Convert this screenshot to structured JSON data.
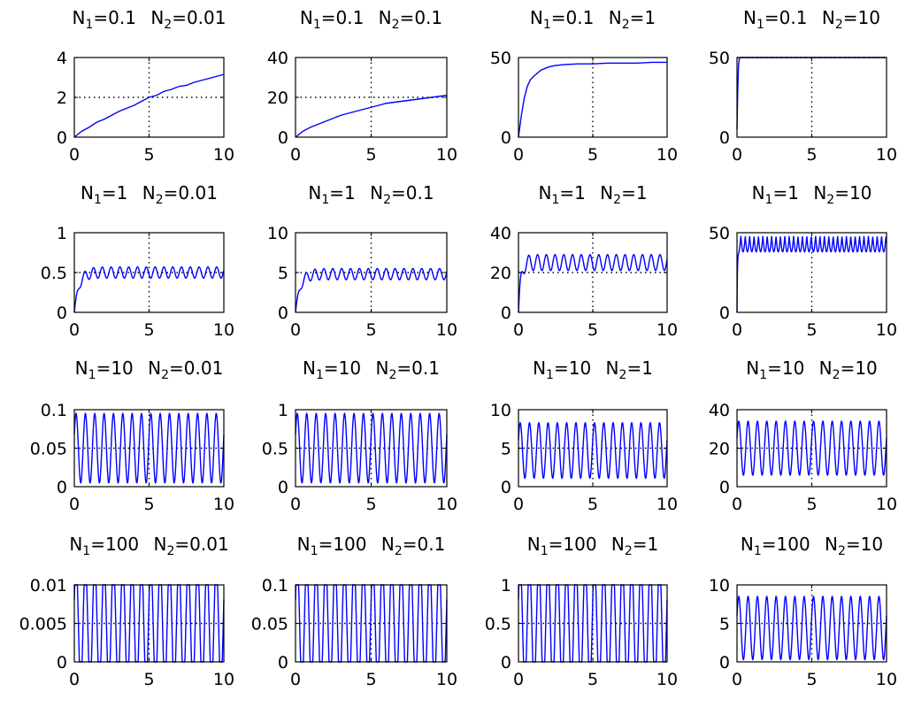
{
  "figure": {
    "background": "#ffffff",
    "line_color": "#0000ff",
    "grid_style": "dotted"
  },
  "chart_data": [
    {
      "type": "line",
      "title": "N1=0.1 N2=0.01",
      "title_parts": {
        "n1": "0.1",
        "n2": "0.01"
      },
      "x_ticks": [
        "0",
        "5",
        "10"
      ],
      "y_ticks": [
        "0",
        "2",
        "4"
      ],
      "xlim": [
        0,
        10
      ],
      "ylim": [
        0,
        4
      ],
      "grid": {
        "x": [
          5
        ],
        "y": [
          2
        ]
      },
      "color": "#0000ff",
      "x": [
        0,
        0.5,
        1,
        1.5,
        2,
        2.5,
        3,
        3.5,
        4,
        4.5,
        5,
        5.5,
        6,
        6.5,
        7,
        7.5,
        8,
        8.5,
        9,
        9.5,
        10
      ],
      "y": [
        0,
        0.3,
        0.5,
        0.75,
        0.9,
        1.1,
        1.3,
        1.45,
        1.6,
        1.8,
        2.0,
        2.1,
        2.3,
        2.4,
        2.55,
        2.6,
        2.75,
        2.85,
        2.95,
        3.05,
        3.15
      ]
    },
    {
      "type": "line",
      "title": "N1=0.1 N2=0.1",
      "title_parts": {
        "n1": "0.1",
        "n2": "0.1"
      },
      "x_ticks": [
        "0",
        "5",
        "10"
      ],
      "y_ticks": [
        "0",
        "20",
        "40"
      ],
      "xlim": [
        0,
        10
      ],
      "ylim": [
        0,
        40
      ],
      "grid": {
        "x": [
          5
        ],
        "y": [
          20
        ]
      },
      "color": "#0000ff",
      "x": [
        0,
        0.5,
        1,
        1.5,
        2,
        2.5,
        3,
        3.5,
        4,
        4.5,
        5,
        5.5,
        6,
        6.5,
        7,
        7.5,
        8,
        8.5,
        9,
        9.5,
        10
      ],
      "y": [
        0,
        3,
        5,
        6.5,
        8,
        9.5,
        11,
        12,
        13,
        14,
        15,
        16,
        17,
        17.5,
        18,
        18.5,
        19,
        19.5,
        20,
        20.5,
        21
      ]
    },
    {
      "type": "line",
      "title": "N1=0.1 N2=1",
      "title_parts": {
        "n1": "0.1",
        "n2": "1"
      },
      "x_ticks": [
        "0",
        "5",
        "10"
      ],
      "y_ticks": [
        "0",
        "50"
      ],
      "xlim": [
        0,
        10
      ],
      "ylim": [
        0,
        50
      ],
      "grid": {
        "x": [
          5
        ],
        "y": []
      },
      "color": "#0000ff",
      "x": [
        0,
        0.2,
        0.4,
        0.6,
        0.8,
        1,
        1.5,
        2,
        2.5,
        3,
        4,
        5,
        6,
        7,
        8,
        9,
        10
      ],
      "y": [
        0,
        14,
        25,
        32,
        36,
        38,
        42,
        44,
        45,
        45.5,
        46,
        46,
        46.5,
        46.5,
        46.5,
        47,
        47
      ]
    },
    {
      "type": "line",
      "title": "N1=0.1 N2=10",
      "title_parts": {
        "n1": "0.1",
        "n2": "10"
      },
      "x_ticks": [
        "0",
        "5",
        "10"
      ],
      "y_ticks": [
        "0",
        "50"
      ],
      "xlim": [
        0,
        10
      ],
      "ylim": [
        0,
        50
      ],
      "grid": {
        "x": [
          5
        ],
        "y": [
          50
        ]
      },
      "color": "#0000ff",
      "x": [
        0,
        0.05,
        0.1,
        0.15,
        0.2,
        0.5,
        1,
        10
      ],
      "y": [
        5,
        30,
        45,
        49,
        50,
        50,
        50,
        50
      ]
    },
    {
      "type": "line",
      "title": "N1=1 N2=0.01",
      "title_parts": {
        "n1": "1",
        "n2": "0.01"
      },
      "x_ticks": [
        "0",
        "5",
        "10"
      ],
      "y_ticks": [
        "0",
        "0.5",
        "1"
      ],
      "xlim": [
        0,
        10
      ],
      "ylim": [
        0,
        1
      ],
      "grid": {
        "x": [
          5
        ],
        "y": [
          0.5
        ]
      },
      "color": "#0000ff",
      "model": {
        "kind": "osc",
        "mean": 0.5,
        "amp": 0.07,
        "freq": 1.7,
        "tau": 0.3,
        "zero_start": true
      }
    },
    {
      "type": "line",
      "title": "N1=1 N2=0.1",
      "title_parts": {
        "n1": "1",
        "n2": "0.1"
      },
      "x_ticks": [
        "0",
        "5",
        "10"
      ],
      "y_ticks": [
        "0",
        "5",
        "10"
      ],
      "xlim": [
        0,
        10
      ],
      "ylim": [
        0,
        10
      ],
      "grid": {
        "x": [
          5
        ],
        "y": [
          5
        ]
      },
      "color": "#0000ff",
      "model": {
        "kind": "osc",
        "mean": 4.8,
        "amp": 0.7,
        "freq": 1.7,
        "tau": 0.3,
        "zero_start": true
      }
    },
    {
      "type": "line",
      "title": "N1=1 N2=1",
      "title_parts": {
        "n1": "1",
        "n2": "1"
      },
      "x_ticks": [
        "0",
        "5",
        "10"
      ],
      "y_ticks": [
        "0",
        "20",
        "40"
      ],
      "xlim": [
        0,
        10
      ],
      "ylim": [
        0,
        40
      ],
      "grid": {
        "x": [
          5
        ],
        "y": [
          20
        ]
      },
      "color": "#0000ff",
      "model": {
        "kind": "osc",
        "mean": 25,
        "amp": 4,
        "freq": 1.7,
        "tau": 0.15,
        "zero_start": true
      }
    },
    {
      "type": "line",
      "title": "N1=1 N2=10",
      "title_parts": {
        "n1": "1",
        "n2": "10"
      },
      "x_ticks": [
        "0",
        "5",
        "10"
      ],
      "y_ticks": [
        "0",
        "50"
      ],
      "xlim": [
        0,
        10
      ],
      "ylim": [
        0,
        50
      ],
      "grid": {
        "x": [
          5
        ],
        "y": []
      },
      "color": "#0000ff",
      "model": {
        "kind": "osc",
        "mean": 43,
        "amp": 5,
        "freq": 1.7,
        "tau": 0.03,
        "zero_start": true,
        "shape": "abs"
      }
    },
    {
      "type": "line",
      "title": "N1=10 N2=0.01",
      "title_parts": {
        "n1": "10",
        "n2": "0.01"
      },
      "x_ticks": [
        "0",
        "5",
        "10"
      ],
      "y_ticks": [
        "0",
        "0.05",
        "0.1"
      ],
      "xlim": [
        0,
        10
      ],
      "ylim": [
        0,
        0.1
      ],
      "grid": {
        "x": [
          5
        ],
        "y": [
          0.05
        ]
      },
      "color": "#0000ff",
      "model": {
        "kind": "osc",
        "mean": 0.05,
        "amp": 0.045,
        "freq": 1.6,
        "tau": 0,
        "zero_start": false
      }
    },
    {
      "type": "line",
      "title": "N1=10 N2=0.1",
      "title_parts": {
        "n1": "10",
        "n2": "0.1"
      },
      "x_ticks": [
        "0",
        "5",
        "10"
      ],
      "y_ticks": [
        "0",
        "0.5",
        "1"
      ],
      "xlim": [
        0,
        10
      ],
      "ylim": [
        0,
        1
      ],
      "grid": {
        "x": [
          5
        ],
        "y": [
          0.5
        ]
      },
      "color": "#0000ff",
      "model": {
        "kind": "osc",
        "mean": 0.5,
        "amp": 0.45,
        "freq": 1.6,
        "tau": 0,
        "zero_start": false
      }
    },
    {
      "type": "line",
      "title": "N1=10 N2=1",
      "title_parts": {
        "n1": "10",
        "n2": "1"
      },
      "x_ticks": [
        "0",
        "5",
        "10"
      ],
      "y_ticks": [
        "0",
        "5",
        "10"
      ],
      "xlim": [
        0,
        10
      ],
      "ylim": [
        0,
        10
      ],
      "grid": {
        "x": [
          5
        ],
        "y": [
          5
        ]
      },
      "color": "#0000ff",
      "model": {
        "kind": "osc",
        "mean": 4.7,
        "amp": 3.6,
        "freq": 1.6,
        "tau": 0,
        "zero_start": false
      }
    },
    {
      "type": "line",
      "title": "N1=10 N2=10",
      "title_parts": {
        "n1": "10",
        "n2": "10"
      },
      "x_ticks": [
        "0",
        "5",
        "10"
      ],
      "y_ticks": [
        "0",
        "20",
        "40"
      ],
      "xlim": [
        0,
        10
      ],
      "ylim": [
        0,
        40
      ],
      "grid": {
        "x": [
          5
        ],
        "y": [
          20
        ]
      },
      "color": "#0000ff",
      "model": {
        "kind": "osc",
        "mean": 20,
        "amp": 14,
        "freq": 1.6,
        "tau": 0,
        "zero_start": false
      }
    },
    {
      "type": "line",
      "title": "N1=100 N2=0.01",
      "title_parts": {
        "n1": "100",
        "n2": "0.01"
      },
      "x_ticks": [
        "0",
        "5",
        "10"
      ],
      "y_ticks": [
        "0",
        "0.005",
        "0.01"
      ],
      "xlim": [
        0,
        10
      ],
      "ylim": [
        0,
        0.01
      ],
      "grid": {
        "x": [
          5
        ],
        "y": [
          0.005
        ]
      },
      "color": "#0000ff",
      "model": {
        "kind": "osc",
        "mean": 0.005,
        "amp": 0.005,
        "freq": 1.6,
        "tau": 0,
        "zero_start": false,
        "shape": "clip"
      }
    },
    {
      "type": "line",
      "title": "N1=100 N2=0.1",
      "title_parts": {
        "n1": "100",
        "n2": "0.1"
      },
      "x_ticks": [
        "0",
        "5",
        "10"
      ],
      "y_ticks": [
        "0",
        "0.05",
        "0.1"
      ],
      "xlim": [
        0,
        10
      ],
      "ylim": [
        0,
        0.1
      ],
      "grid": {
        "x": [
          5
        ],
        "y": [
          0.05
        ]
      },
      "color": "#0000ff",
      "model": {
        "kind": "osc",
        "mean": 0.05,
        "amp": 0.05,
        "freq": 1.6,
        "tau": 0,
        "zero_start": false,
        "shape": "clip"
      }
    },
    {
      "type": "line",
      "title": "N1=100 N2=1",
      "title_parts": {
        "n1": "100",
        "n2": "1"
      },
      "x_ticks": [
        "0",
        "5",
        "10"
      ],
      "y_ticks": [
        "0",
        "0.5",
        "1"
      ],
      "xlim": [
        0,
        10
      ],
      "ylim": [
        0,
        1
      ],
      "grid": {
        "x": [
          5
        ],
        "y": [
          0.5
        ]
      },
      "color": "#0000ff",
      "model": {
        "kind": "osc",
        "mean": 0.5,
        "amp": 0.5,
        "freq": 1.6,
        "tau": 0,
        "zero_start": false,
        "shape": "clip"
      }
    },
    {
      "type": "line",
      "title": "N1=100 N2=10",
      "title_parts": {
        "n1": "100",
        "n2": "10"
      },
      "x_ticks": [
        "0",
        "5",
        "10"
      ],
      "y_ticks": [
        "0",
        "5",
        "10"
      ],
      "xlim": [
        0,
        10
      ],
      "ylim": [
        0,
        10
      ],
      "grid": {
        "x": [
          5
        ],
        "y": [
          5
        ]
      },
      "color": "#0000ff",
      "model": {
        "kind": "osc",
        "mean": 4.4,
        "amp": 4.1,
        "freq": 1.6,
        "tau": 0,
        "zero_start": false
      }
    }
  ]
}
